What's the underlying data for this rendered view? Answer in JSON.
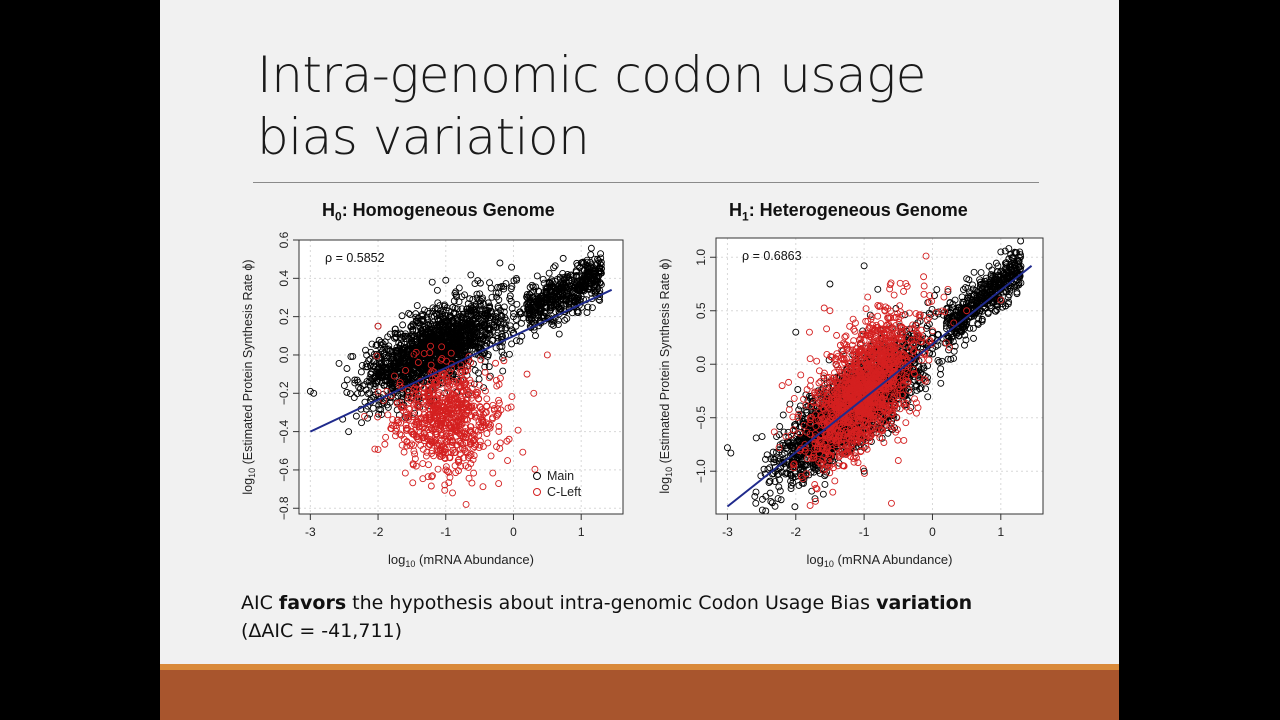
{
  "slide": {
    "title_line1": "Intra-genomic codon usage",
    "title_line2": "bias variation",
    "caption": {
      "part1": "AIC ",
      "bold1": "favors",
      "part2": " the hypothesis about intra-genomic Codon Usage Bias ",
      "bold2": "variation",
      "line2": "(ΔAIC = -41,711)"
    },
    "colors": {
      "background": "#f1f1f1",
      "bar": "#a8552d",
      "accent": "#d98a3a",
      "main_series": "#000000",
      "cleft_series": "#d42020",
      "fit_line": "#1f2a8c"
    }
  },
  "chart_data": [
    {
      "type": "scatter",
      "title_prefix": "H",
      "title_sub": "0",
      "title_rest": ": Homogeneous Genome",
      "xlabel_prefix": "log",
      "xlabel_sub": "10",
      "xlabel_rest": " (mRNA Abundance)",
      "ylabel_prefix": "log",
      "ylabel_sub": "10",
      "ylabel_rest": " (Estimated Protein Synthesis Rate ϕ)",
      "xlim": [
        -3.0,
        1.45
      ],
      "ylim": [
        -0.83,
        0.6
      ],
      "xticks": [
        -3,
        -2,
        -1,
        0,
        1
      ],
      "yticks": [
        -0.8,
        -0.6,
        -0.4,
        -0.2,
        0.0,
        0.2,
        0.4,
        0.6
      ],
      "ytick_labels": [
        "−0.8",
        "−0.6",
        "−0.4",
        "−0.2",
        "0.0",
        "0.2",
        "0.4",
        "0.6"
      ],
      "xtick_labels": [
        "-3",
        "-2",
        "-1",
        "0",
        "1"
      ],
      "annotation": "ρ = 0.5852",
      "legend": {
        "placement": "bottom-right",
        "entries": [
          "Main",
          "C-Left"
        ]
      },
      "fit_line": {
        "x": [
          -3.0,
          1.45
        ],
        "y": [
          -0.4,
          0.34
        ]
      },
      "series": [
        {
          "name": "Main",
          "approx_points": [
            [
              -3.0,
              -0.19
            ],
            [
              -2.95,
              -0.2
            ],
            [
              -2.0,
              0.15
            ],
            [
              -1.5,
              0.0
            ],
            [
              -1.2,
              0.38
            ],
            [
              -1.0,
              0.39
            ],
            [
              -0.8,
              0.35
            ],
            [
              -0.2,
              0.48
            ],
            [
              0.0,
              0.2
            ],
            [
              0.5,
              0.3
            ],
            [
              0.8,
              0.42
            ],
            [
              1.0,
              0.48
            ],
            [
              1.2,
              0.5
            ],
            [
              1.3,
              0.45
            ],
            [
              1.1,
              0.25
            ],
            [
              -1.5,
              -0.1
            ],
            [
              -0.5,
              0.1
            ],
            [
              0.2,
              0.3
            ]
          ]
        },
        {
          "name": "C-Left",
          "approx_points": [
            [
              -2.2,
              -0.32
            ],
            [
              -1.5,
              -0.4
            ],
            [
              -1.2,
              -0.5
            ],
            [
              -1.0,
              -0.6
            ],
            [
              -0.9,
              -0.72
            ],
            [
              -0.7,
              -0.78
            ],
            [
              -0.6,
              -0.45
            ],
            [
              -0.4,
              -0.3
            ],
            [
              0.2,
              -0.1
            ],
            [
              0.3,
              -0.2
            ],
            [
              0.5,
              0.0
            ],
            [
              -2.0,
              0.15
            ]
          ]
        }
      ]
    },
    {
      "type": "scatter",
      "title_prefix": "H",
      "title_sub": "1",
      "title_rest": ": Heterogeneous Genome",
      "xlabel_prefix": "log",
      "xlabel_sub": "10",
      "xlabel_rest": " (mRNA Abundance)",
      "ylabel_prefix": "log",
      "ylabel_sub": "10",
      "ylabel_rest": " (Estimated Protein Synthesis Rate ϕ)",
      "xlim": [
        -3.0,
        1.45
      ],
      "ylim": [
        -1.4,
        1.18
      ],
      "xticks": [
        -3,
        -2,
        -1,
        0,
        1
      ],
      "yticks": [
        -1.0,
        -0.5,
        0.0,
        0.5,
        1.0
      ],
      "ytick_labels": [
        "−1.0",
        "−0.5",
        "0.0",
        "0.5",
        "1.0"
      ],
      "xtick_labels": [
        "-3",
        "-2",
        "-1",
        "0",
        "1"
      ],
      "annotation": "ρ = 0.6863",
      "fit_line": {
        "x": [
          -3.0,
          1.45
        ],
        "y": [
          -1.33,
          0.92
        ]
      },
      "series": [
        {
          "name": "Main",
          "approx_points": [
            [
              -3.0,
              -0.78
            ],
            [
              -2.95,
              -0.83
            ],
            [
              -2.0,
              0.3
            ],
            [
              -1.5,
              0.75
            ],
            [
              -1.0,
              0.92
            ],
            [
              -0.8,
              0.7
            ],
            [
              0.5,
              0.8
            ],
            [
              1.0,
              1.05
            ],
            [
              1.2,
              0.95
            ],
            [
              -1.5,
              -0.9
            ],
            [
              -1.0,
              -1.0
            ],
            [
              0.0,
              0.3
            ]
          ]
        },
        {
          "name": "C-Left",
          "approx_points": [
            [
              -2.2,
              -0.2
            ],
            [
              -1.8,
              0.3
            ],
            [
              -1.5,
              0.5
            ],
            [
              -1.0,
              0.1
            ],
            [
              -0.8,
              0.55
            ],
            [
              -0.6,
              -1.3
            ],
            [
              -0.5,
              -0.9
            ],
            [
              0.2,
              0.2
            ],
            [
              0.5,
              0.5
            ],
            [
              1.0,
              0.6
            ],
            [
              -1.2,
              -0.6
            ]
          ]
        }
      ]
    }
  ]
}
